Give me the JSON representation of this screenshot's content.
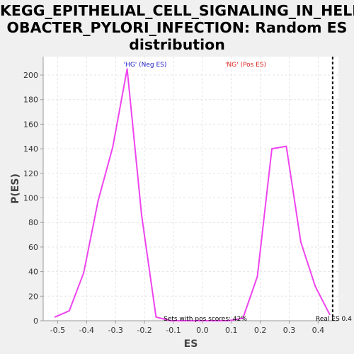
{
  "chart_data": {
    "type": "line",
    "title": "KEGG_EPITHELIAL_CELL_SIGNALING_IN_HELICOBACTER_PYLORI_INFECTION: Random ES distribution",
    "title_lines": [
      "KEGG_EPITHELIAL_CELL_SIGNALING_IN_HELIC",
      "OBACTER_PYLORI_INFECTION: Random ES",
      "distribution"
    ],
    "xlabel": "ES",
    "ylabel": "P(ES)",
    "xlim": [
      -0.55,
      0.47
    ],
    "ylim": [
      0,
      215
    ],
    "xticks": [
      -0.5,
      -0.4,
      -0.3,
      -0.2,
      -0.1,
      0.0,
      0.1,
      0.2,
      0.3,
      0.4
    ],
    "xtick_labels": [
      "-0.5",
      "-0.4",
      "-0.3",
      "-0.2",
      "-0.1",
      "0.0",
      "0.1",
      "0.2",
      "0.3",
      "0.4"
    ],
    "yticks": [
      0,
      20,
      40,
      60,
      80,
      100,
      120,
      140,
      160,
      180,
      200
    ],
    "ytick_labels": [
      "0",
      "20",
      "40",
      "60",
      "80",
      "100",
      "120",
      "140",
      "160",
      "180",
      "200"
    ],
    "grid": true,
    "series": [
      {
        "color": "#ee44ee",
        "x": [
          -0.51,
          -0.46,
          -0.41,
          -0.36,
          -0.31,
          -0.26,
          -0.21,
          -0.16,
          -0.11,
          -0.06,
          -0.01,
          0.04,
          0.09,
          0.14,
          0.19,
          0.24,
          0.29,
          0.34,
          0.39,
          0.44
        ],
        "y": [
          3,
          8,
          39,
          98,
          141,
          205,
          86,
          3,
          0,
          0,
          0,
          0,
          0,
          2,
          36,
          140,
          142,
          64,
          28,
          5
        ]
      }
    ],
    "annotations": [
      {
        "text": "'HG' (Neg ES)",
        "color": "#2222cc"
      },
      {
        "text": "'NG' (Pos ES)",
        "color": "#dd2222"
      },
      {
        "text": "Sets with pos scores: 42%",
        "color": "#000000"
      },
      {
        "text": "Real ES 0.4",
        "color": "#000000"
      }
    ],
    "real_es": 0.45,
    "real_es_line_color": "#000000"
  }
}
